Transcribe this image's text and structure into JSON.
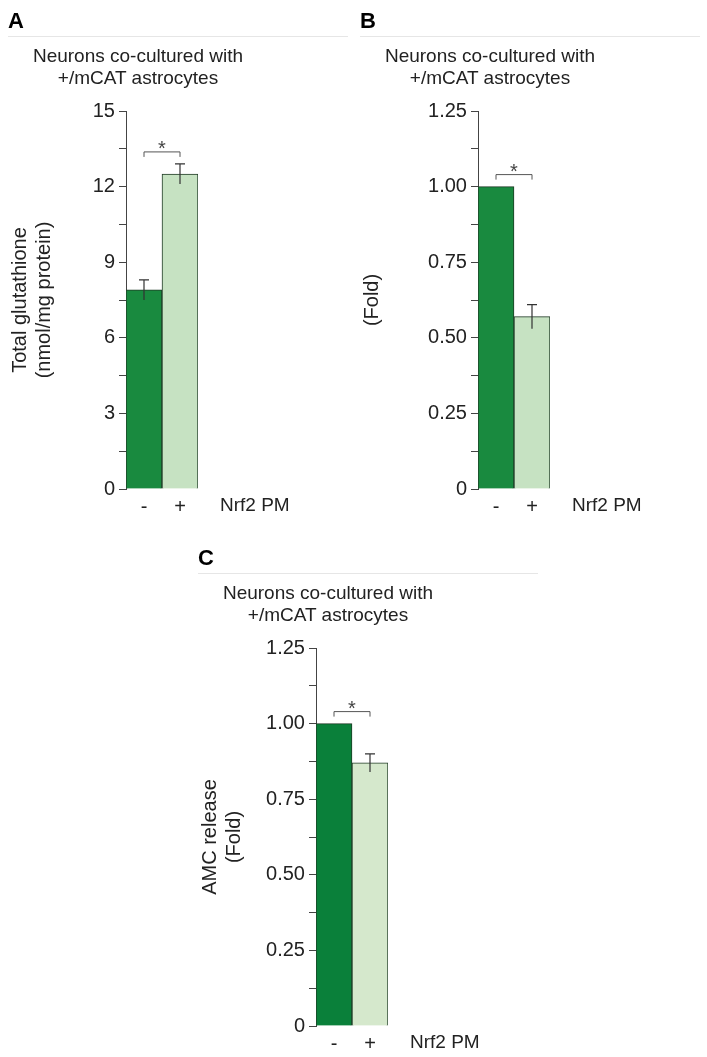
{
  "chart_data": [
    {
      "type": "bar",
      "title": "Neurons co-cultured with +/mCAT astrocytes",
      "ylabel": "Total glutathione (nmol/mg protein)",
      "xlabel": "Nrf2 PM",
      "categories": [
        "-",
        "+"
      ],
      "values": [
        7.9,
        12.5
      ],
      "errors": [
        0.4,
        0.4
      ],
      "colors": [
        "#198a3f",
        "#c6e2c2"
      ],
      "ylim": [
        0,
        15
      ],
      "yticks": [
        0,
        {
          "value": 1.5,
          "label": null
        },
        3,
        {
          "value": 4.5,
          "label": null
        },
        6,
        {
          "value": 7.5,
          "label": null
        },
        9,
        {
          "value": 10.5,
          "label": null
        },
        12,
        {
          "value": 13.5,
          "label": null
        },
        15
      ],
      "grid": false,
      "annotations": [
        "A",
        "*"
      ]
    },
    {
      "type": "bar",
      "title": "Neurons co-cultured with +/mCAT astrocytes",
      "ylabel": "(Fold)",
      "xlabel": "Nrf2 PM",
      "categories": [
        "-",
        "+"
      ],
      "values": [
        1.0,
        0.57
      ],
      "errors": [
        null,
        0.04
      ],
      "colors": [
        "#198a3f",
        "#c6e2c2"
      ],
      "ylim": [
        0,
        1.25
      ],
      "yticks": [
        0,
        {
          "value": 0.125,
          "label": null
        },
        0.25,
        {
          "value": 0.375,
          "label": null
        },
        {
          "value": 0.5,
          "label": "0.50"
        },
        {
          "value": 0.625,
          "label": null
        },
        0.75,
        {
          "value": 0.875,
          "label": null
        },
        {
          "value": 1.0,
          "label": "1.00"
        },
        {
          "value": 1.125,
          "label": null
        },
        1.25
      ],
      "grid": false,
      "annotations": [
        "B",
        "*"
      ]
    },
    {
      "type": "bar",
      "title": "Neurons co-cultured with +/mCAT astrocytes",
      "ylabel": "AMC release (Fold)",
      "xlabel": "Nrf2 PM",
      "categories": [
        "-",
        "+"
      ],
      "values": [
        1.0,
        0.87
      ],
      "errors": [
        null,
        0.03
      ],
      "colors": [
        "#0a803a",
        "#d5e8cc"
      ],
      "ylim": [
        0,
        1.25
      ],
      "yticks": [
        0,
        {
          "value": 0.125,
          "label": null
        },
        0.25,
        {
          "value": 0.375,
          "label": null
        },
        {
          "value": 0.5,
          "label": "0.50"
        },
        {
          "value": 0.625,
          "label": null
        },
        0.75,
        {
          "value": 0.875,
          "label": null
        },
        {
          "value": 1.0,
          "label": "1.00"
        },
        {
          "value": 1.125,
          "label": null
        },
        1.25
      ],
      "grid": false,
      "annotations": [
        "C",
        "*"
      ]
    }
  ]
}
